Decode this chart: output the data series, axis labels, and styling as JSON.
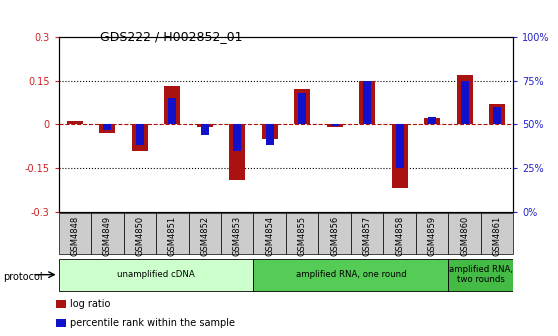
{
  "title": "GDS222 / H002852_01",
  "samples": [
    "GSM4848",
    "GSM4849",
    "GSM4850",
    "GSM4851",
    "GSM4852",
    "GSM4853",
    "GSM4854",
    "GSM4855",
    "GSM4856",
    "GSM4857",
    "GSM4858",
    "GSM4859",
    "GSM4860",
    "GSM4861"
  ],
  "log_ratio": [
    0.01,
    -0.03,
    -0.09,
    0.13,
    -0.01,
    -0.19,
    -0.05,
    0.12,
    -0.01,
    0.15,
    -0.22,
    0.02,
    0.17,
    0.07
  ],
  "percentile_rank": [
    50,
    47,
    38,
    65,
    44,
    35,
    38,
    68,
    49,
    75,
    25,
    54,
    75,
    60
  ],
  "log_ratio_color": "#aa1111",
  "percentile_color": "#1111cc",
  "ylim_left": [
    -0.3,
    0.3
  ],
  "ylim_right": [
    0,
    100
  ],
  "yticks_left": [
    -0.3,
    -0.15,
    0,
    0.15,
    0.3
  ],
  "yticks_right": [
    0,
    25,
    50,
    75,
    100
  ],
  "ytick_labels_left": [
    "-0.3",
    "-0.15",
    "0",
    "0.15",
    "0.3"
  ],
  "ytick_labels_right": [
    "0%",
    "25%",
    "50%",
    "75%",
    "100%"
  ],
  "protocol_groups": [
    {
      "label": "unamplified cDNA",
      "start": 0,
      "end": 5,
      "color": "#ccffcc"
    },
    {
      "label": "amplified RNA, one round",
      "start": 6,
      "end": 11,
      "color": "#55cc55"
    },
    {
      "label": "amplified RNA,\ntwo rounds",
      "start": 12,
      "end": 13,
      "color": "#44bb44"
    }
  ],
  "protocol_label": "protocol",
  "legend_items": [
    {
      "label": "log ratio",
      "color": "#aa1111"
    },
    {
      "label": "percentile rank within the sample",
      "color": "#1111cc"
    }
  ],
  "background_color": "#ffffff",
  "left_tick_color": "#cc2222",
  "right_tick_color": "#2222cc",
  "xtick_box_color": "#cccccc",
  "bar_width": 0.5,
  "blue_bar_width": 0.25
}
